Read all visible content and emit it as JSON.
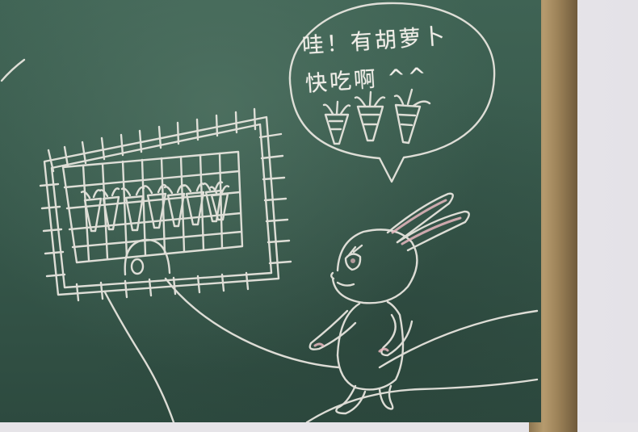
{
  "scene": {
    "description_type": "chalkboard drawing",
    "speech_bubble": {
      "line1": "哇！有胡萝卜",
      "line2": "快吃啊 ^^"
    },
    "colors": {
      "chalkboard": "#36574a",
      "chalk": "#f1eee8",
      "pink_chalk": "#e8b8bf",
      "frame": "#a88d60",
      "wall": "#e6e4e8"
    },
    "carrots_in_field": 8,
    "carrots_in_bubble": 3
  }
}
